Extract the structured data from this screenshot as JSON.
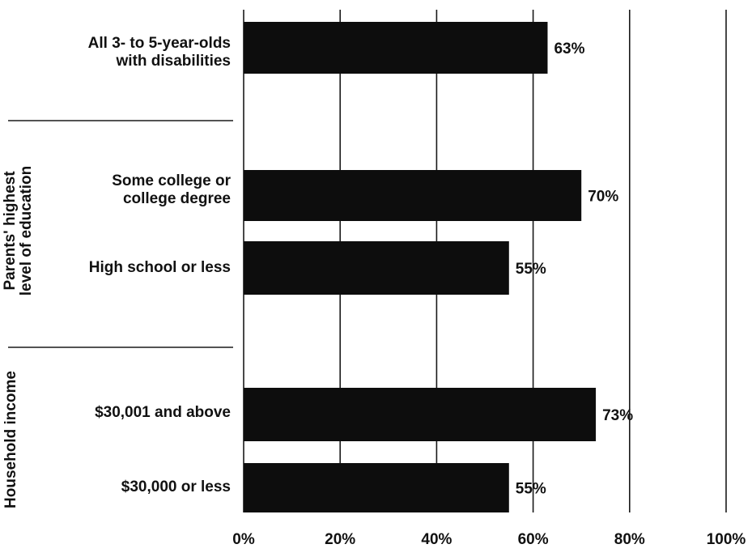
{
  "chart_data": {
    "type": "bar",
    "orientation": "horizontal",
    "categories": [
      "All 3- to 5-year-olds\nwith disabilities",
      "Some college or\ncollege degree",
      "High school or less",
      "$30,001 and above",
      "$30,000 or less"
    ],
    "groups": [
      {
        "name": "",
        "categories": [
          "All 3- to 5-year-olds\nwith disabilities"
        ]
      },
      {
        "name": "Parents' highest\nlevel of education",
        "categories": [
          "Some college or\ncollege degree",
          "High school or less"
        ]
      },
      {
        "name": "Household income",
        "categories": [
          "$30,001 and above",
          "$30,000 or less"
        ]
      }
    ],
    "values": [
      63,
      70,
      55,
      73,
      55
    ],
    "value_labels": [
      "63%",
      "70%",
      "55%",
      "73%",
      "55%"
    ],
    "xlim": [
      0,
      100
    ],
    "xticks": [
      0,
      20,
      40,
      60,
      80,
      100
    ],
    "xtick_labels": [
      "0%",
      "20%",
      "40%",
      "60%",
      "80%",
      "100%"
    ],
    "grid": true,
    "colors": {
      "bar": "#0d0d0d",
      "grid": "#1a1a1a",
      "text": "#111111"
    }
  }
}
